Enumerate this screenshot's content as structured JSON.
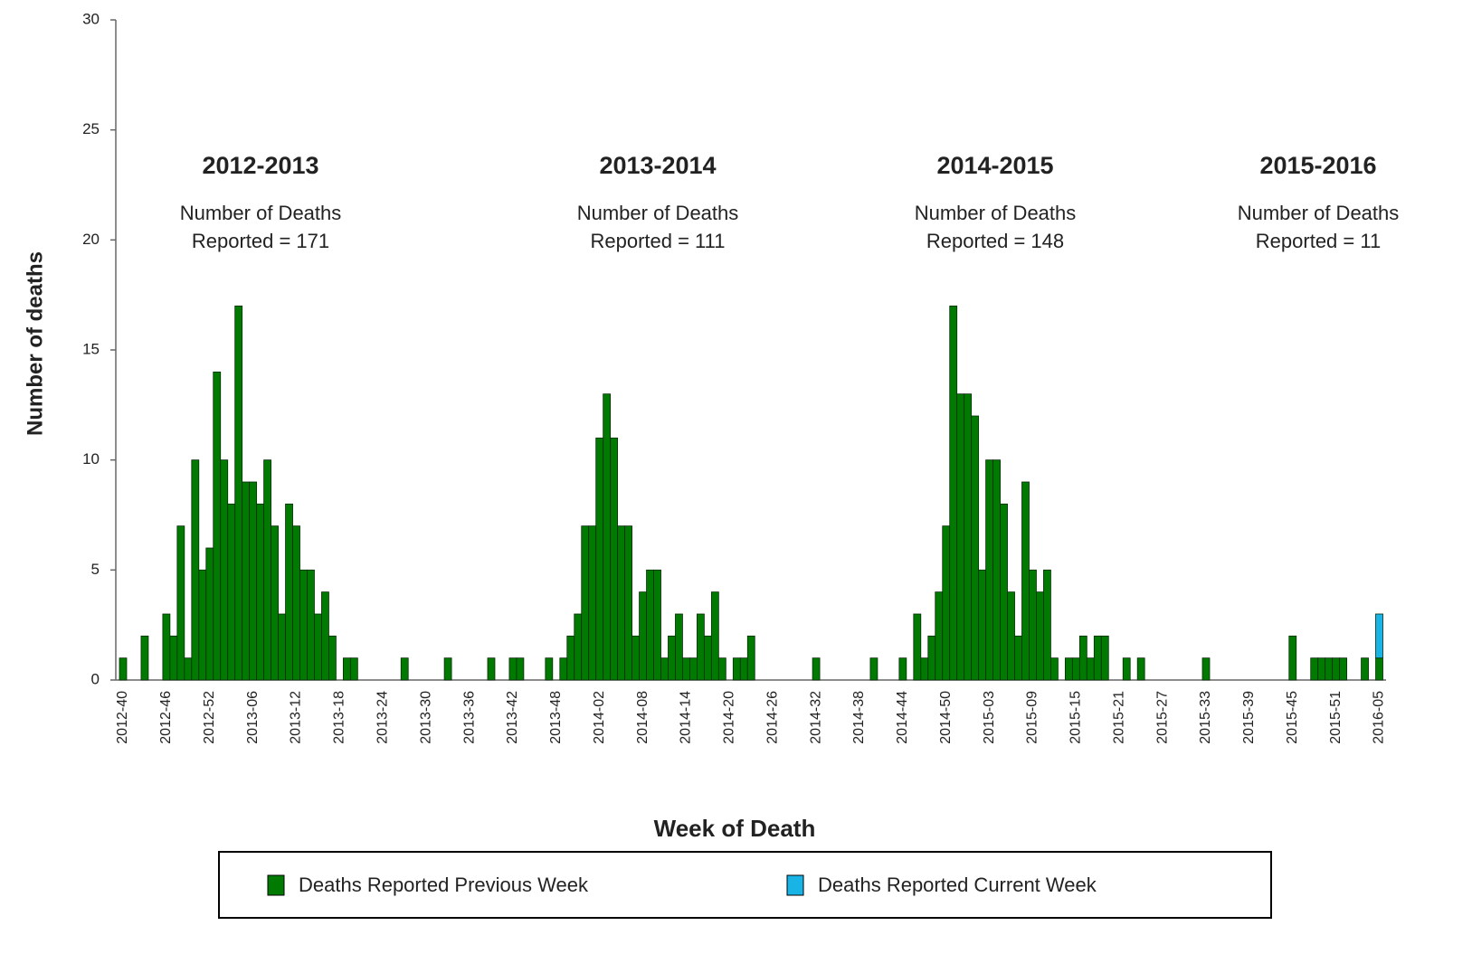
{
  "chart_data": {
    "type": "bar",
    "stacked": true,
    "ylabel": "Number of deaths",
    "xlabel": "Week of Death",
    "ylim": [
      0,
      30
    ],
    "yticks": [
      0,
      5,
      10,
      15,
      20,
      25,
      30
    ],
    "categories": [
      "2012-40",
      null,
      null,
      null,
      null,
      null,
      "2012-46",
      null,
      null,
      null,
      null,
      null,
      "2012-52",
      null,
      null,
      null,
      null,
      null,
      "2013-06",
      null,
      null,
      null,
      null,
      null,
      "2013-12",
      null,
      null,
      null,
      null,
      null,
      "2013-18",
      null,
      null,
      null,
      null,
      null,
      "2013-24",
      null,
      null,
      null,
      null,
      null,
      "2013-30",
      null,
      null,
      null,
      null,
      null,
      "2013-36",
      null,
      null,
      null,
      null,
      null,
      "2013-42",
      null,
      null,
      null,
      null,
      null,
      "2013-48",
      null,
      null,
      null,
      null,
      null,
      "2014-02",
      null,
      null,
      null,
      null,
      null,
      "2014-08",
      null,
      null,
      null,
      null,
      null,
      "2014-14",
      null,
      null,
      null,
      null,
      null,
      "2014-20",
      null,
      null,
      null,
      null,
      null,
      "2014-26",
      null,
      null,
      null,
      null,
      null,
      "2014-32",
      null,
      null,
      null,
      null,
      null,
      "2014-38",
      null,
      null,
      null,
      null,
      null,
      "2014-44",
      null,
      null,
      null,
      null,
      null,
      "2014-50",
      null,
      null,
      null,
      null,
      null,
      "2015-03",
      null,
      null,
      null,
      null,
      null,
      "2015-09",
      null,
      null,
      null,
      null,
      null,
      "2015-15",
      null,
      null,
      null,
      null,
      null,
      "2015-21",
      null,
      null,
      null,
      null,
      null,
      "2015-27",
      null,
      null,
      null,
      null,
      null,
      "2015-33",
      null,
      null,
      null,
      null,
      null,
      "2015-39",
      null,
      null,
      null,
      null,
      null,
      "2015-45",
      null,
      null,
      null,
      null,
      null,
      "2015-51",
      null,
      null,
      null,
      null,
      null,
      "2016-05"
    ],
    "series": [
      {
        "name": "Deaths Reported Previous Week",
        "color": "#007a00",
        "values": [
          1,
          0,
          0,
          2,
          0,
          0,
          3,
          2,
          7,
          1,
          10,
          5,
          6,
          14,
          10,
          8,
          17,
          9,
          9,
          8,
          10,
          7,
          3,
          8,
          7,
          5,
          5,
          3,
          4,
          2,
          0,
          1,
          1,
          0,
          0,
          0,
          0,
          0,
          0,
          1,
          0,
          0,
          0,
          0,
          0,
          1,
          0,
          0,
          0,
          0,
          0,
          1,
          0,
          0,
          1,
          1,
          0,
          0,
          0,
          1,
          0,
          1,
          2,
          3,
          7,
          7,
          11,
          13,
          11,
          7,
          7,
          2,
          4,
          5,
          5,
          1,
          2,
          3,
          1,
          1,
          3,
          2,
          4,
          1,
          0,
          1,
          1,
          2,
          0,
          0,
          0,
          0,
          0,
          0,
          0,
          0,
          1,
          0,
          0,
          0,
          0,
          0,
          0,
          0,
          1,
          0,
          0,
          0,
          1,
          0,
          3,
          1,
          2,
          4,
          7,
          17,
          13,
          13,
          12,
          5,
          10,
          10,
          8,
          4,
          2,
          9,
          5,
          4,
          5,
          1,
          0,
          1,
          1,
          2,
          1,
          2,
          2,
          0,
          0,
          1,
          0,
          1,
          0,
          0,
          0,
          0,
          0,
          0,
          0,
          0,
          1,
          0,
          0,
          0,
          0,
          0,
          0,
          0,
          0,
          0,
          0,
          0,
          2,
          0,
          0,
          1,
          1,
          1,
          1,
          1,
          0,
          0,
          1,
          0,
          1
        ]
      },
      {
        "name": "Deaths Reported Current Week",
        "color": "#19b4e6",
        "values": [
          0,
          0,
          0,
          0,
          0,
          0,
          0,
          0,
          0,
          0,
          0,
          0,
          0,
          0,
          0,
          0,
          0,
          0,
          0,
          0,
          0,
          0,
          0,
          0,
          0,
          0,
          0,
          0,
          0,
          0,
          0,
          0,
          0,
          0,
          0,
          0,
          0,
          0,
          0,
          0,
          0,
          0,
          0,
          0,
          0,
          0,
          0,
          0,
          0,
          0,
          0,
          0,
          0,
          0,
          0,
          0,
          0,
          0,
          0,
          0,
          0,
          0,
          0,
          0,
          0,
          0,
          0,
          0,
          0,
          0,
          0,
          0,
          0,
          0,
          0,
          0,
          0,
          0,
          0,
          0,
          0,
          0,
          0,
          0,
          0,
          0,
          0,
          0,
          0,
          0,
          0,
          0,
          0,
          0,
          0,
          0,
          0,
          0,
          0,
          0,
          0,
          0,
          0,
          0,
          0,
          0,
          0,
          0,
          0,
          0,
          0,
          0,
          0,
          0,
          0,
          0,
          0,
          0,
          0,
          0,
          0,
          0,
          0,
          0,
          0,
          0,
          0,
          0,
          0,
          0,
          0,
          0,
          0,
          0,
          0,
          0,
          0,
          0,
          0,
          0,
          0,
          0,
          0,
          0,
          0,
          0,
          0,
          0,
          0,
          0,
          0,
          0,
          0,
          0,
          0,
          0,
          0,
          0,
          0,
          0,
          0,
          0,
          0,
          0,
          0,
          0,
          0,
          0,
          0,
          0,
          0,
          0,
          0,
          0,
          2
        ]
      }
    ],
    "annotations": [
      {
        "title": "2012-2013",
        "lines": [
          "Number of Deaths",
          "Reported = 171"
        ]
      },
      {
        "title": "2013-2014",
        "lines": [
          "Number of Deaths",
          "Reported = 111"
        ]
      },
      {
        "title": "2014-2015",
        "lines": [
          "Number of Deaths",
          "Reported = 148"
        ]
      },
      {
        "title": "2015-2016",
        "lines": [
          "Number of Deaths",
          "Reported = 11"
        ]
      }
    ]
  }
}
